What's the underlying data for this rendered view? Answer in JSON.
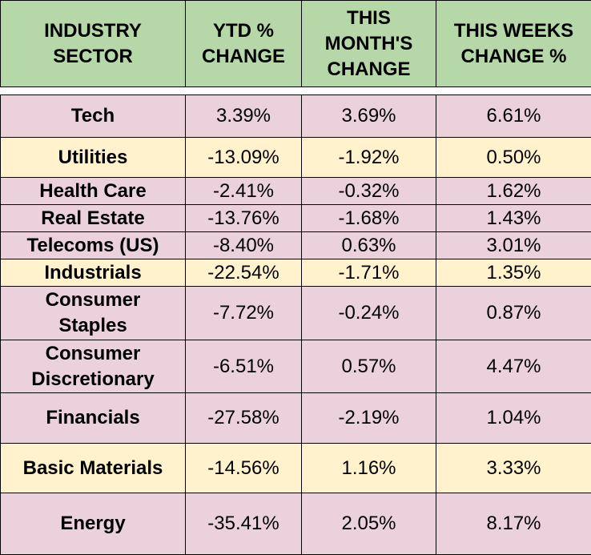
{
  "chart_data": {
    "type": "table",
    "columns": [
      "INDUSTRY SECTOR",
      "YTD % CHANGE",
      "THIS MONTH'S CHANGE",
      "THIS WEEKS CHANGE %"
    ],
    "rows": [
      [
        "Tech",
        "3.39%",
        "3.69%",
        "6.61%"
      ],
      [
        "Utilities",
        "-13.09%",
        "-1.92%",
        "0.50%"
      ],
      [
        "Health Care",
        "-2.41%",
        "-0.32%",
        "1.62%"
      ],
      [
        "Real Estate",
        "-13.76%",
        "-1.68%",
        "1.43%"
      ],
      [
        "Telecoms (US)",
        "-8.40%",
        "0.63%",
        "3.01%"
      ],
      [
        "Industrials",
        "-22.54%",
        "-1.71%",
        "1.35%"
      ],
      [
        "Consumer Staples",
        "-7.72%",
        "-0.24%",
        "0.87%"
      ],
      [
        "Consumer Discretionary",
        "-6.51%",
        "0.57%",
        "4.47%"
      ],
      [
        "Financials",
        "-27.58%",
        "-2.19%",
        "1.04%"
      ],
      [
        "Basic Materials",
        "-14.56%",
        "1.16%",
        "3.33%"
      ],
      [
        "Energy",
        "-35.41%",
        "2.05%",
        "8.17%"
      ]
    ],
    "row_colors": [
      "#ead1dc",
      "#fff2cc"
    ],
    "header_color": "#b6d7a8"
  }
}
